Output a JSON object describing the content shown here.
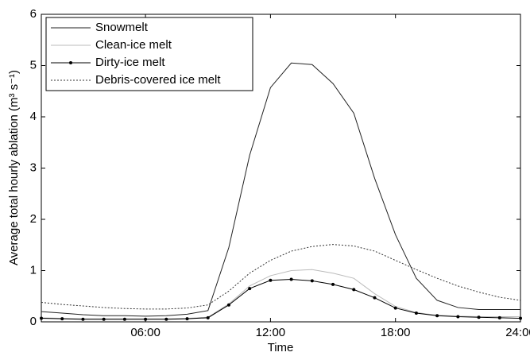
{
  "chart_data": {
    "type": "line",
    "xlabel": "Time",
    "ylabel": "Average total hourly ablation (m³ s⁻¹)",
    "x": [
      1,
      2,
      3,
      4,
      5,
      6,
      7,
      8,
      9,
      10,
      11,
      12,
      13,
      14,
      15,
      16,
      17,
      18,
      19,
      20,
      21,
      22,
      23,
      24
    ],
    "series": [
      {
        "name": "Snowmelt",
        "color": "#222222",
        "dash": "none",
        "marker": "none",
        "values": [
          0.2,
          0.17,
          0.14,
          0.12,
          0.12,
          0.11,
          0.12,
          0.15,
          0.22,
          1.45,
          3.25,
          4.57,
          5.05,
          5.02,
          4.65,
          4.07,
          2.8,
          1.7,
          0.85,
          0.42,
          0.28,
          0.24,
          0.24,
          0.24
        ]
      },
      {
        "name": "Clean-ice melt",
        "color": "#bbbbbb",
        "dash": "none",
        "marker": "none",
        "values": [
          0.08,
          0.07,
          0.06,
          0.06,
          0.06,
          0.06,
          0.06,
          0.07,
          0.09,
          0.35,
          0.7,
          0.9,
          1.0,
          1.02,
          0.95,
          0.85,
          0.55,
          0.3,
          0.18,
          0.13,
          0.11,
          0.1,
          0.1,
          0.1
        ]
      },
      {
        "name": "Dirty-ice melt",
        "color": "#000000",
        "dash": "none",
        "marker": "dot",
        "values": [
          0.07,
          0.06,
          0.05,
          0.05,
          0.05,
          0.05,
          0.05,
          0.06,
          0.08,
          0.33,
          0.65,
          0.81,
          0.83,
          0.8,
          0.73,
          0.63,
          0.47,
          0.27,
          0.17,
          0.12,
          0.1,
          0.09,
          0.08,
          0.07
        ]
      },
      {
        "name": "Debris-covered ice melt",
        "color": "#333333",
        "dash": "2 2",
        "marker": "none",
        "values": [
          0.38,
          0.34,
          0.31,
          0.28,
          0.26,
          0.25,
          0.25,
          0.27,
          0.33,
          0.6,
          0.95,
          1.2,
          1.38,
          1.47,
          1.51,
          1.48,
          1.38,
          1.2,
          1.02,
          0.85,
          0.7,
          0.58,
          0.48,
          0.42
        ]
      }
    ],
    "xlim": [
      1,
      24
    ],
    "xticks": [
      {
        "value": 6,
        "label": "06:00"
      },
      {
        "value": 12,
        "label": "12:00"
      },
      {
        "value": 18,
        "label": "18:00"
      },
      {
        "value": 24,
        "label": "24:00"
      }
    ],
    "ylim": [
      0,
      6
    ],
    "yticks": [
      0,
      1,
      2,
      3,
      4,
      5,
      6
    ],
    "legend": "upper-left"
  }
}
